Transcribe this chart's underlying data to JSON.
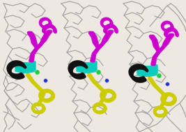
{
  "figsize": [
    2.67,
    1.89
  ],
  "dpi": 100,
  "bg_color": "#ede8e2",
  "colors": {
    "gray": "#999999",
    "cyan": "#00ccbb",
    "magenta": "#cc00cc",
    "yellow": "#cccc00",
    "black_res": "#111111",
    "green": "#22cc44",
    "blue": "#2233cc",
    "dark_navy": "#111155"
  }
}
